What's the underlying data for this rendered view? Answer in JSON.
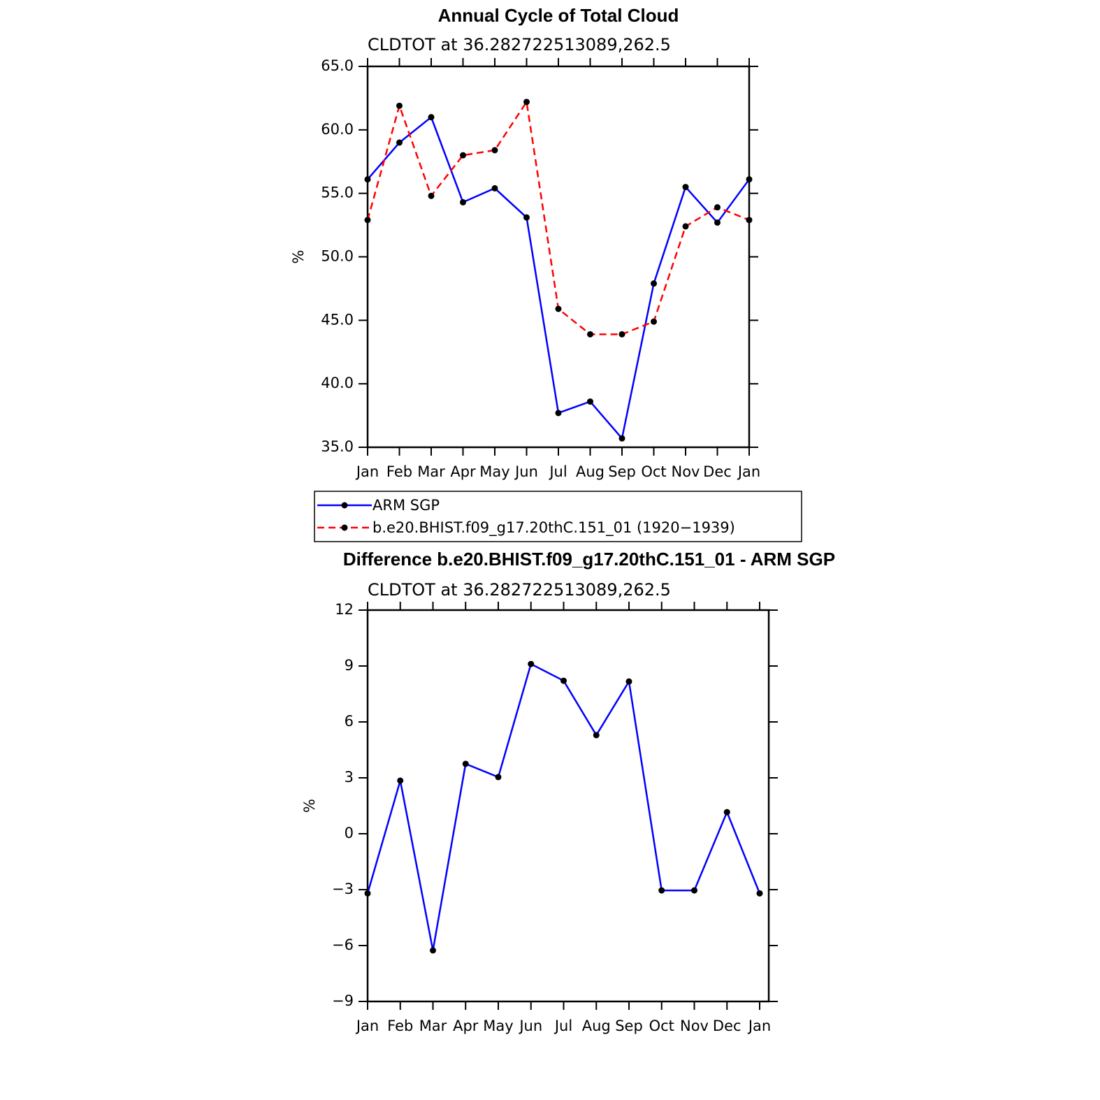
{
  "chart_data": [
    {
      "type": "line",
      "title": "Annual Cycle of Total Cloud",
      "subtitle": "CLDTOT at 36.282722513089,262.5",
      "ylabel": "%",
      "categories": [
        "Jan",
        "Feb",
        "Mar",
        "Apr",
        "May",
        "Jun",
        "Jul",
        "Aug",
        "Sep",
        "Oct",
        "Nov",
        "Dec",
        "Jan"
      ],
      "series": [
        {
          "name": "ARM SGP",
          "color": "#0000ff",
          "line_style": "solid",
          "values": [
            56.1,
            59.0,
            61.0,
            54.3,
            55.4,
            53.1,
            37.7,
            38.6,
            35.7,
            47.9,
            55.5,
            52.7,
            56.1
          ]
        },
        {
          "name": "b.e20.BHIST.f09_g17.20thC.151_01 (1920−1939)",
          "color": "#ff0000",
          "line_style": "dashed",
          "values": [
            52.9,
            61.9,
            54.8,
            58.0,
            58.4,
            62.2,
            45.9,
            43.9,
            43.9,
            44.9,
            52.4,
            53.9,
            52.9
          ]
        }
      ],
      "ylim": [
        35,
        65
      ],
      "yticks": [
        {
          "value": 35,
          "label": "35.0"
        },
        {
          "value": 40,
          "label": "40.0"
        },
        {
          "value": 45,
          "label": "45.0"
        },
        {
          "value": 50,
          "label": "50.0"
        },
        {
          "value": 55,
          "label": "55.0"
        },
        {
          "value": 60,
          "label": "60.0"
        },
        {
          "value": 65,
          "label": "65.0"
        }
      ],
      "legend": "below"
    },
    {
      "type": "line",
      "title": "Difference b.e20.BHIST.f09_g17.20thC.151_01 - ARM SGP",
      "subtitle": "CLDTOT at 36.282722513089,262.5",
      "ylabel": "%",
      "categories": [
        "Jan",
        "Feb",
        "Mar",
        "Apr",
        "May",
        "Jun",
        "Jul",
        "Aug",
        "Sep",
        "Oct",
        "Nov",
        "Dec",
        "Jan"
      ],
      "series": [
        {
          "color": "#0000ff",
          "line_style": "solid",
          "values": [
            -3.2,
            2.85,
            -6.26,
            3.75,
            3.04,
            9.11,
            8.21,
            5.29,
            8.17,
            -3.04,
            -3.04,
            1.16,
            -3.2
          ]
        }
      ],
      "ylim": [
        -9,
        12
      ],
      "yticks": [
        {
          "value": -9,
          "label": "−9"
        },
        {
          "value": -6,
          "label": "−6"
        },
        {
          "value": -3,
          "label": "−3"
        },
        0,
        3,
        6,
        9,
        12
      ]
    }
  ]
}
